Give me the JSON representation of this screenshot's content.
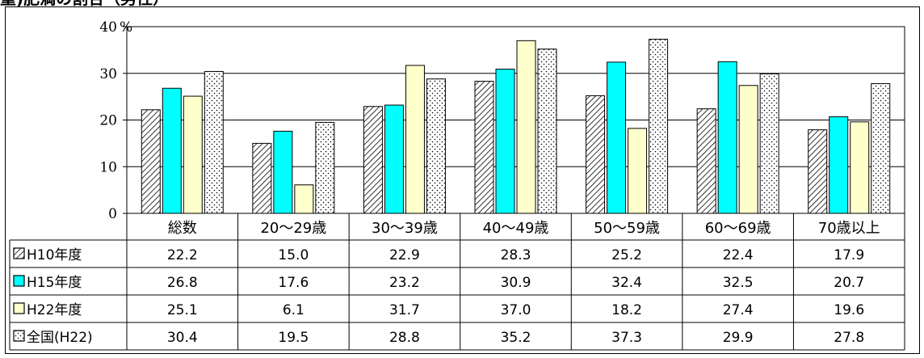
{
  "title": "重)肥満の割合（男性）",
  "chart_data": {
    "type": "bar",
    "unit": "%",
    "ylim": [
      0,
      40
    ],
    "yticks": [
      0,
      10,
      20,
      30,
      40
    ],
    "grid": true,
    "legend": "table-left",
    "categories": [
      "総数",
      "20～29歳",
      "30～39歳",
      "40～49歳",
      "50～59歳",
      "60～69歳",
      "70歳以上"
    ],
    "series": [
      {
        "name": "H10年度",
        "pattern": "hatch",
        "color": "#ffffff",
        "values": [
          22.2,
          15.0,
          22.9,
          28.3,
          25.2,
          22.4,
          17.9
        ],
        "labels": [
          "22.2",
          "15.0",
          "22.9",
          "28.3",
          "25.2",
          "22.4",
          "17.9"
        ]
      },
      {
        "name": "H15年度",
        "pattern": "solid",
        "color": "#00ffff",
        "values": [
          26.8,
          17.6,
          23.2,
          30.9,
          32.4,
          32.5,
          20.7
        ],
        "labels": [
          "26.8",
          "17.6",
          "23.2",
          "30.9",
          "32.4",
          "32.5",
          "20.7"
        ]
      },
      {
        "name": "H22年度",
        "pattern": "solid",
        "color": "#ffffcc",
        "values": [
          25.1,
          6.1,
          31.7,
          37.0,
          18.2,
          27.4,
          19.6
        ],
        "labels": [
          "25.1",
          "6.1",
          "31.7",
          "37.0",
          "18.2",
          "27.4",
          "19.6"
        ]
      },
      {
        "name": "全国(H22)",
        "pattern": "dots",
        "color": "#ffffff",
        "values": [
          30.4,
          19.5,
          28.8,
          35.2,
          37.3,
          29.9,
          27.8
        ],
        "labels": [
          "30.4",
          "19.5",
          "28.8",
          "35.2",
          "37.3",
          "29.9",
          "27.8"
        ]
      }
    ]
  }
}
